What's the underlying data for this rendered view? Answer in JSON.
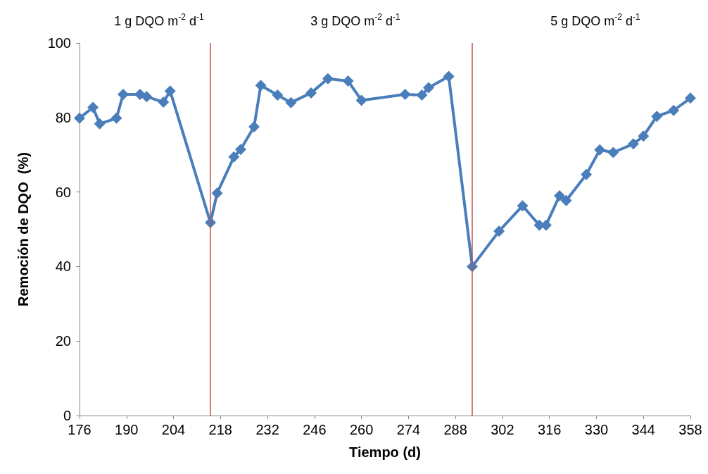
{
  "chart_data": {
    "type": "line",
    "xlabel": "Tiempo (d)",
    "ylabel": "Remoción de DQO  (%)",
    "annotations": [
      "1 g DQO m$^{-2}$ d$^{-1}$",
      "3 g DQO m$^{-2}$ d$^{-1}$",
      "5 g DQO m$^{-2}$ d$^{-1}$"
    ],
    "series": [
      {
        "color": "#4a7ebb",
        "x": [
          176,
          180,
          182,
          187,
          189,
          194,
          196,
          201,
          203,
          215,
          217,
          222,
          224,
          228,
          230,
          235,
          239,
          245,
          250,
          256,
          260,
          273,
          278,
          280,
          286,
          293,
          301,
          308,
          313,
          315,
          319,
          321,
          327,
          331,
          335,
          341,
          344,
          348,
          353,
          358
        ],
        "values": [
          79.8,
          82.7,
          78.3,
          79.8,
          86.2,
          86.2,
          85.6,
          84.1,
          87.1,
          51.8,
          59.7,
          69.4,
          71.4,
          77.5,
          88.6,
          86.0,
          84.0,
          86.6,
          90.4,
          89.8,
          84.6,
          86.2,
          86.0,
          88.0,
          91.0,
          40.0,
          49.5,
          56.3,
          51.1,
          51.1,
          59.0,
          57.7,
          64.7,
          71.3,
          70.6,
          72.9,
          75.0,
          80.3,
          81.9,
          85.2
        ]
      }
    ],
    "xlim": [
      176,
      358
    ],
    "xticks": [
      176,
      190,
      204,
      218,
      232,
      246,
      260,
      274,
      288,
      302,
      316,
      330,
      344,
      358
    ],
    "ylim": [
      0,
      100
    ],
    "yticks": [
      0,
      20,
      40,
      60,
      80,
      100
    ],
    "grid": false,
    "marker": "diamond",
    "line_style": "solid",
    "ref_lines": [
      {
        "axis": "x",
        "value": 215,
        "color": "#c0504d"
      },
      {
        "axis": "x",
        "value": 293,
        "color": "#c0504d"
      }
    ]
  }
}
